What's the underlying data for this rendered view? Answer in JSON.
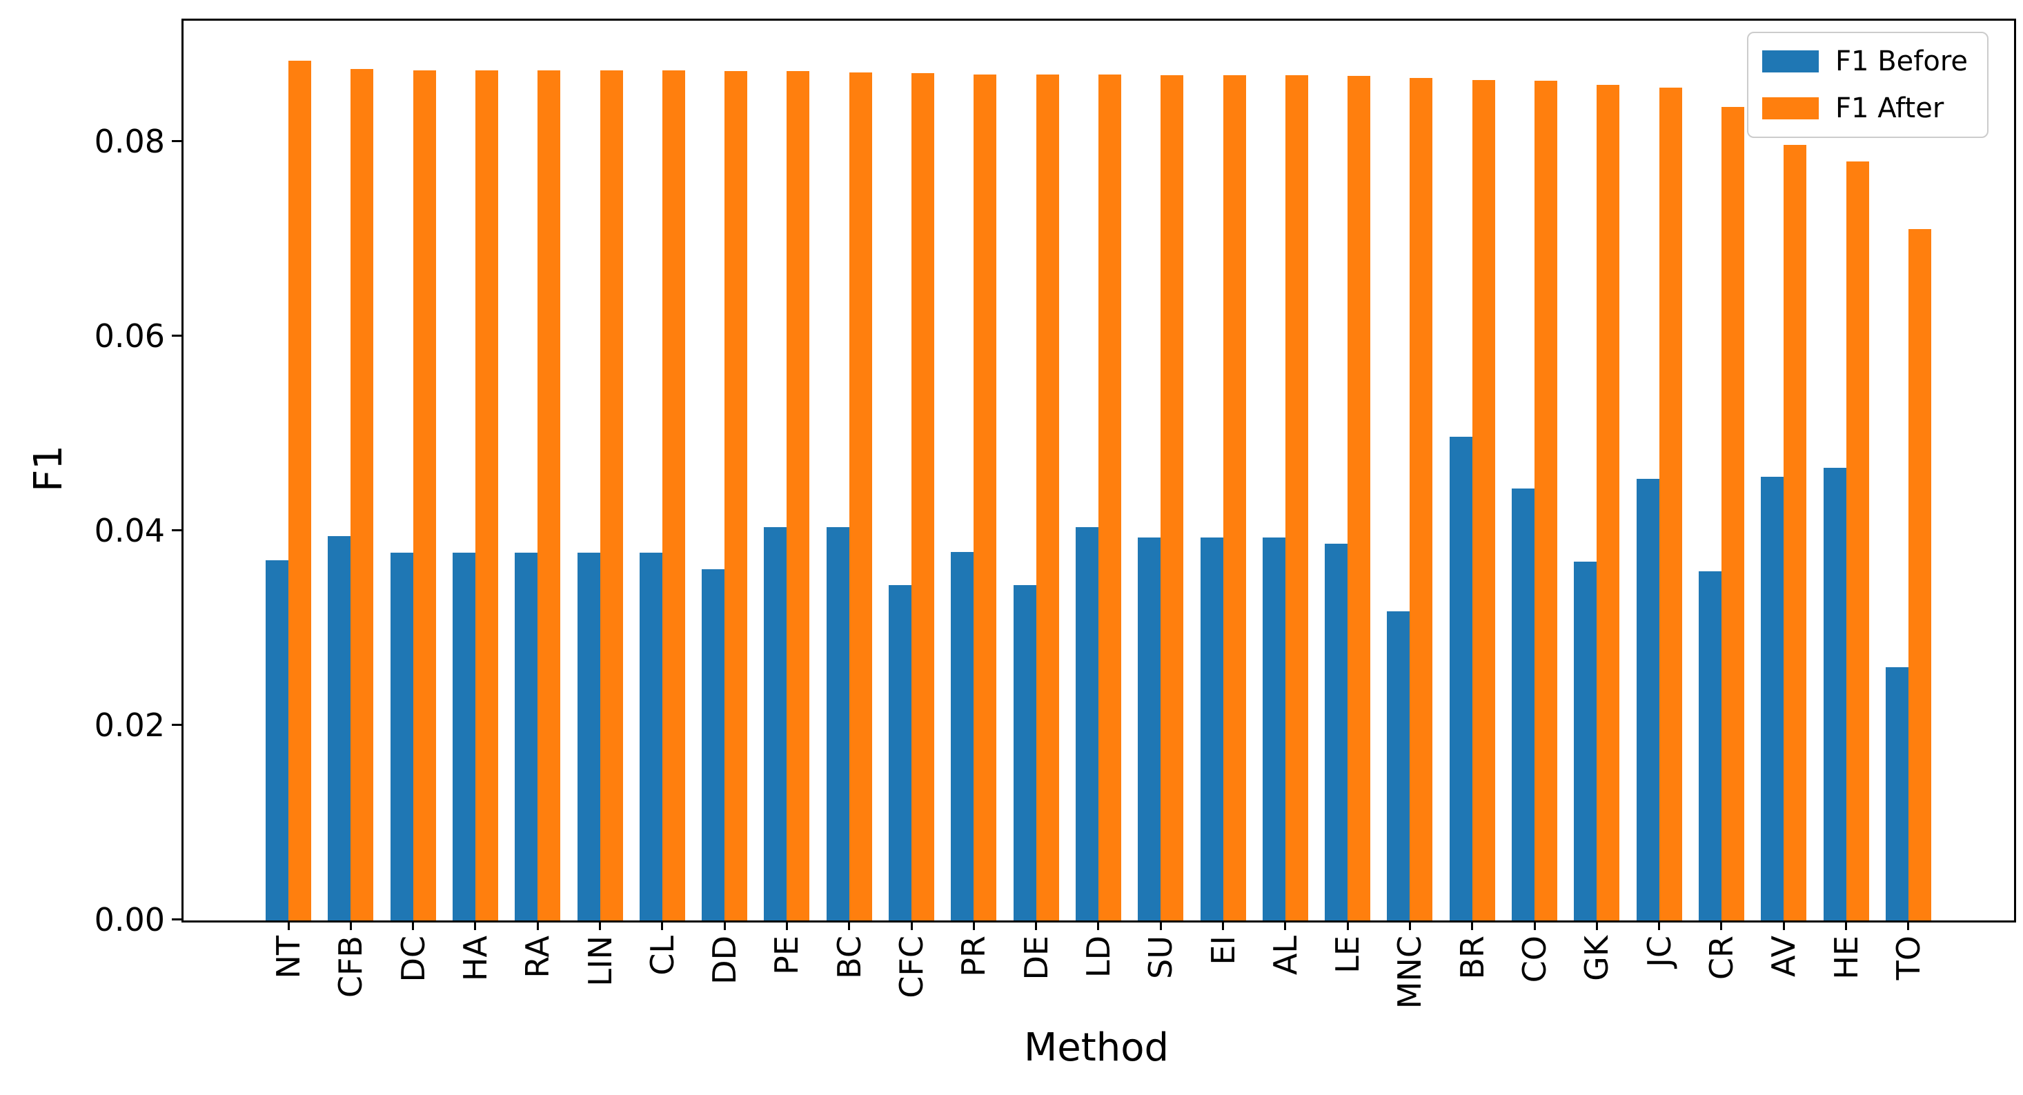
{
  "chart_data": {
    "type": "bar",
    "title": "",
    "xlabel": "Method",
    "ylabel": "F1",
    "grid": false,
    "legend_position": "upper right",
    "ylim": [
      0,
      0.0925
    ],
    "ytick_values": [
      0,
      0.02,
      0.04,
      0.06,
      0.08
    ],
    "ytick_labels": [
      "0.00",
      "0.02",
      "0.04",
      "0.06",
      "0.08"
    ],
    "categories": [
      "NT",
      "CFB",
      "DC",
      "HA",
      "RA",
      "LIN",
      "CL",
      "DD",
      "PE",
      "BC",
      "CFC",
      "PR",
      "DE",
      "LD",
      "SU",
      "EI",
      "AL",
      "LE",
      "MNC",
      "BR",
      "CO",
      "GK",
      "JC",
      "CR",
      "AV",
      "HE",
      "TO"
    ],
    "series": [
      {
        "name": "F1 Before",
        "color": "#1f77b4",
        "values": [
          0.037,
          0.0395,
          0.0378,
          0.0378,
          0.0378,
          0.0378,
          0.0378,
          0.0361,
          0.0404,
          0.0404,
          0.0345,
          0.0379,
          0.0345,
          0.0404,
          0.0394,
          0.0394,
          0.0394,
          0.0387,
          0.0318,
          0.0497,
          0.0444,
          0.0369,
          0.0454,
          0.0359,
          0.0456,
          0.0465,
          0.026
        ]
      },
      {
        "name": "F1 After",
        "color": "#ff7f0e",
        "values": [
          0.0884,
          0.0875,
          0.0874,
          0.0874,
          0.0874,
          0.0874,
          0.0874,
          0.0873,
          0.0873,
          0.0872,
          0.0871,
          0.087,
          0.087,
          0.087,
          0.0869,
          0.0869,
          0.0869,
          0.0868,
          0.0866,
          0.0864,
          0.0863,
          0.0859,
          0.0856,
          0.0836,
          0.0797,
          0.078,
          0.0711
        ]
      }
    ]
  }
}
